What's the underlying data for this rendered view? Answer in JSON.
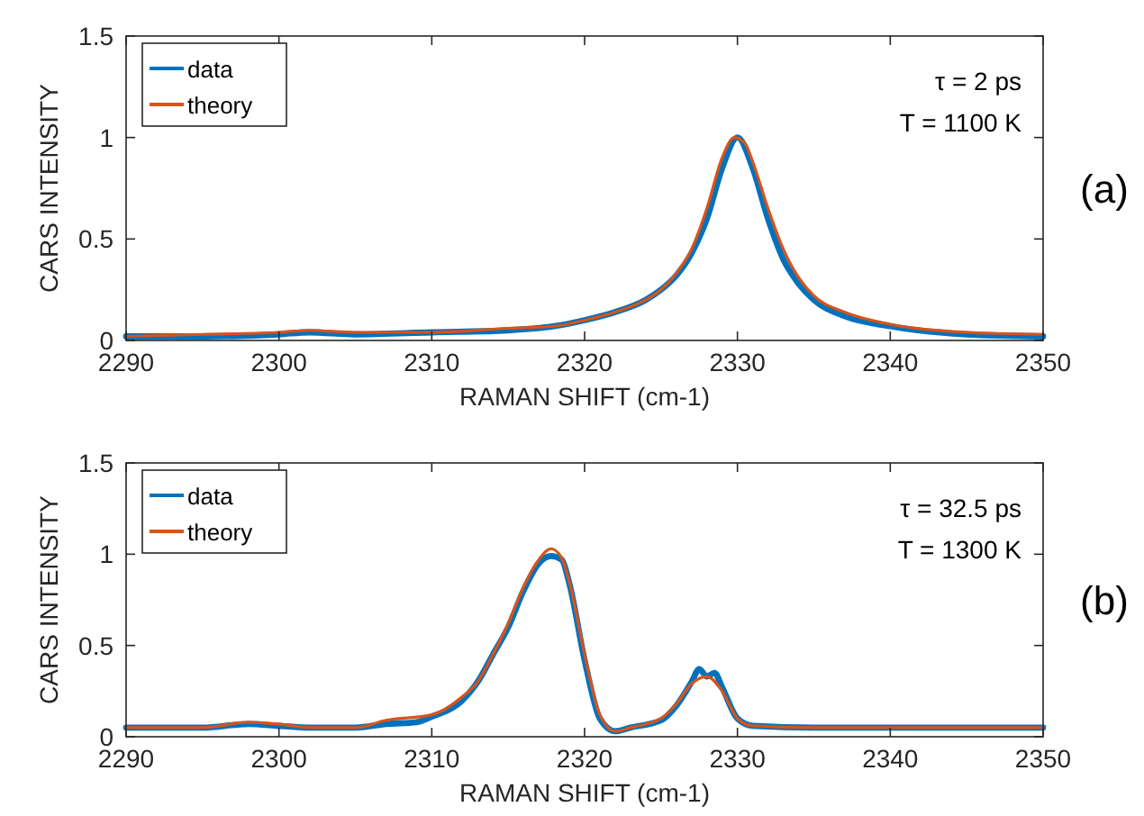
{
  "chart_data": [
    {
      "type": "line",
      "xlabel": "RAMAN SHIFT (cm-1)",
      "ylabel": "CARS INTENSITY",
      "xlim": [
        2290,
        2350
      ],
      "ylim": [
        0,
        1.5
      ],
      "xticks": [
        2290,
        2300,
        2310,
        2320,
        2330,
        2340,
        2350
      ],
      "yticks": [
        0,
        0.5,
        1,
        1.5
      ],
      "legend": "top left",
      "grid": false,
      "annotations": [
        "τ = 2 ps",
        "T = 1100 K",
        "(a)"
      ],
      "series": [
        {
          "name": "data",
          "color": "#0072bd",
          "x": [
            2290,
            2295,
            2300,
            2302,
            2305,
            2310,
            2315,
            2318,
            2320,
            2322,
            2324,
            2325,
            2326,
            2327,
            2328,
            2329,
            2330,
            2331,
            2332,
            2333,
            2334,
            2335,
            2337,
            2340,
            2345,
            2350
          ],
          "values": [
            0.02,
            0.02,
            0.03,
            0.04,
            0.03,
            0.04,
            0.05,
            0.07,
            0.1,
            0.14,
            0.2,
            0.25,
            0.32,
            0.43,
            0.6,
            0.85,
            1.0,
            0.85,
            0.6,
            0.4,
            0.28,
            0.2,
            0.12,
            0.07,
            0.03,
            0.02
          ]
        },
        {
          "name": "theory",
          "color": "#d95319",
          "x": [
            2290,
            2295,
            2300,
            2302,
            2305,
            2310,
            2315,
            2318,
            2320,
            2322,
            2324,
            2325,
            2326,
            2327,
            2328,
            2329,
            2329.8,
            2330.5,
            2331,
            2332,
            2333,
            2334,
            2335,
            2337,
            2340,
            2345,
            2350
          ],
          "values": [
            0.02,
            0.03,
            0.04,
            0.05,
            0.04,
            0.04,
            0.06,
            0.07,
            0.1,
            0.14,
            0.2,
            0.25,
            0.33,
            0.45,
            0.65,
            0.9,
            1.0,
            0.97,
            0.88,
            0.65,
            0.45,
            0.31,
            0.22,
            0.14,
            0.08,
            0.04,
            0.03
          ]
        }
      ]
    },
    {
      "type": "line",
      "xlabel": "RAMAN SHIFT (cm-1)",
      "ylabel": "CARS INTENSITY",
      "xlim": [
        2290,
        2350
      ],
      "ylim": [
        0,
        1.5
      ],
      "xticks": [
        2290,
        2300,
        2310,
        2320,
        2330,
        2340,
        2350
      ],
      "yticks": [
        0,
        0.5,
        1,
        1.5
      ],
      "legend": "top left",
      "grid": false,
      "annotations": [
        "τ = 32.5 ps",
        "T = 1300 K",
        "(b)"
      ],
      "series": [
        {
          "name": "data",
          "color": "#0072bd",
          "x": [
            2290,
            2295,
            2298,
            2300,
            2302,
            2305,
            2307,
            2309,
            2310,
            2312,
            2313,
            2314,
            2315,
            2316,
            2317,
            2317.8,
            2318.5,
            2319,
            2320,
            2321,
            2322,
            2323,
            2325,
            2326,
            2327,
            2327.5,
            2328,
            2328.5,
            2329,
            2330,
            2331,
            2335,
            2340,
            2345,
            2350
          ],
          "values": [
            0.05,
            0.05,
            0.07,
            0.06,
            0.05,
            0.05,
            0.07,
            0.08,
            0.11,
            0.2,
            0.3,
            0.45,
            0.6,
            0.8,
            0.95,
            0.99,
            0.97,
            0.84,
            0.42,
            0.1,
            0.03,
            0.05,
            0.09,
            0.17,
            0.3,
            0.37,
            0.33,
            0.35,
            0.27,
            0.1,
            0.06,
            0.05,
            0.05,
            0.05,
            0.05
          ]
        },
        {
          "name": "theory",
          "color": "#d95319",
          "x": [
            2290,
            2295,
            2298,
            2300,
            2302,
            2305,
            2307,
            2310,
            2312,
            2313,
            2314,
            2315,
            2316,
            2317,
            2317.8,
            2318.5,
            2319,
            2320,
            2321,
            2322,
            2323,
            2325,
            2326,
            2327,
            2328,
            2329,
            2330,
            2331,
            2335,
            2340,
            2345,
            2350
          ],
          "values": [
            0.05,
            0.05,
            0.08,
            0.07,
            0.05,
            0.05,
            0.09,
            0.12,
            0.22,
            0.3,
            0.45,
            0.62,
            0.82,
            0.97,
            1.03,
            0.98,
            0.85,
            0.45,
            0.12,
            0.03,
            0.05,
            0.1,
            0.18,
            0.29,
            0.33,
            0.25,
            0.1,
            0.06,
            0.05,
            0.05,
            0.05,
            0.05
          ]
        }
      ]
    }
  ]
}
